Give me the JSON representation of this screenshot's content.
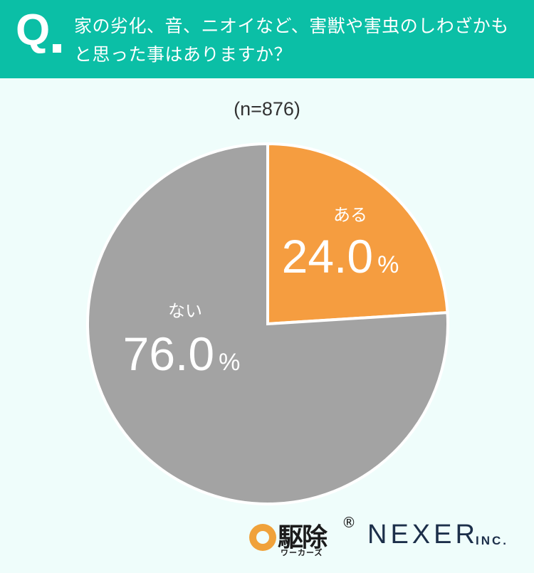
{
  "header": {
    "q_label": "Q",
    "question": "家の劣化、音、ニオイなど、害獣や害虫のしわざかもと思った事はありますか？"
  },
  "sample_size": "(n=876)",
  "colors": {
    "header_bg": "#0bbfa6",
    "background": "#effdfb",
    "slice_yes": "#f59d40",
    "slice_no": "#a3a3a3"
  },
  "chart_data": {
    "type": "pie",
    "unit": "%",
    "slices": [
      {
        "label": "ある",
        "value": 24.0,
        "display": "24.0",
        "color": "#f59d40"
      },
      {
        "label": "ない",
        "value": 76.0,
        "display": "76.0",
        "color": "#a3a3a3"
      }
    ]
  },
  "footer": {
    "logo1_main": "駆除",
    "logo1_sub": "ワーカーズ",
    "logo1_reg": "®",
    "logo2_main": "NEXER",
    "logo2_sub": "INC."
  }
}
